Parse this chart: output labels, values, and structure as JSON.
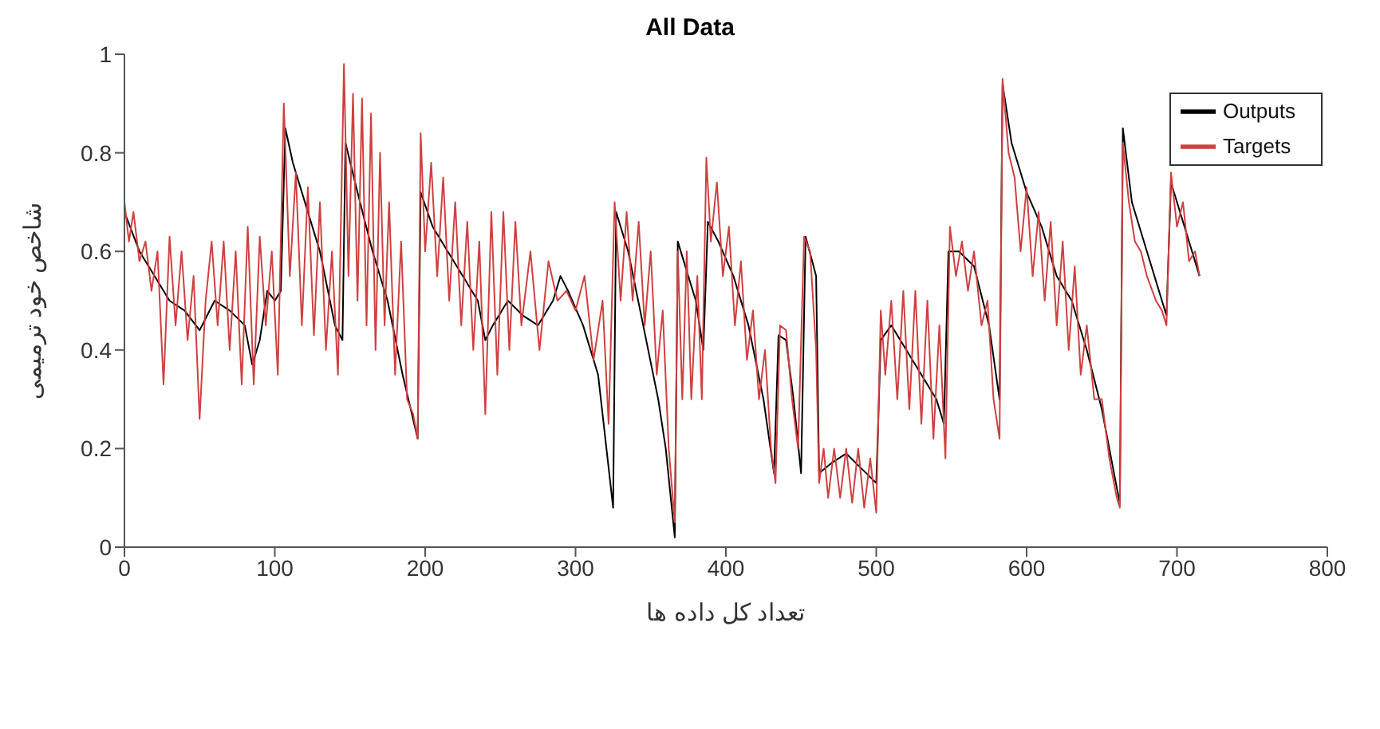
{
  "chart_data": {
    "type": "line",
    "title": "All Data",
    "xlabel": "تعداد کل داده ها",
    "ylabel": "شاخص خود ترمیمی",
    "xlim": [
      0,
      800
    ],
    "xticks": [
      0,
      100,
      200,
      300,
      400,
      500,
      600,
      700,
      800
    ],
    "ylim": [
      0,
      1
    ],
    "yticks": [
      0,
      0.2,
      0.4,
      0.6,
      0.8,
      1
    ],
    "grid": false,
    "legend": "top right",
    "marker": "none",
    "line_style": "solid",
    "series": [
      {
        "name": "Targets",
        "color": "#d04040",
        "x": [
          0,
          3,
          6,
          10,
          14,
          18,
          22,
          26,
          30,
          34,
          38,
          42,
          46,
          50,
          54,
          58,
          62,
          66,
          70,
          74,
          78,
          82,
          86,
          90,
          94,
          98,
          102,
          106,
          110,
          114,
          118,
          122,
          126,
          130,
          134,
          138,
          142,
          146,
          149,
          152,
          155,
          158,
          161,
          164,
          167,
          170,
          173,
          176,
          180,
          184,
          188,
          192,
          195,
          197,
          200,
          204,
          208,
          212,
          216,
          220,
          224,
          228,
          232,
          236,
          240,
          244,
          248,
          252,
          256,
          260,
          264,
          270,
          276,
          282,
          288,
          294,
          300,
          306,
          312,
          318,
          322,
          326,
          330,
          334,
          338,
          342,
          346,
          350,
          354,
          358,
          362,
          366,
          368,
          371,
          374,
          377,
          381,
          384,
          387,
          390,
          394,
          398,
          402,
          406,
          410,
          414,
          418,
          422,
          426,
          430,
          433,
          436,
          440,
          444,
          448,
          452,
          456,
          460,
          462,
          465,
          468,
          472,
          476,
          480,
          484,
          488,
          492,
          496,
          500,
          503,
          506,
          510,
          514,
          518,
          522,
          526,
          530,
          534,
          538,
          542,
          546,
          549,
          553,
          557,
          561,
          565,
          570,
          574,
          578,
          582,
          584,
          588,
          592,
          596,
          600,
          604,
          608,
          612,
          616,
          620,
          624,
          628,
          632,
          636,
          640,
          645,
          650,
          655,
          660,
          662,
          664,
          668,
          672,
          676,
          680,
          686,
          690,
          693,
          696,
          700,
          704,
          708,
          712,
          715
        ],
        "values": [
          0.7,
          0.62,
          0.68,
          0.58,
          0.62,
          0.52,
          0.6,
          0.33,
          0.63,
          0.45,
          0.6,
          0.42,
          0.55,
          0.26,
          0.5,
          0.62,
          0.45,
          0.62,
          0.4,
          0.6,
          0.33,
          0.65,
          0.33,
          0.63,
          0.45,
          0.6,
          0.35,
          0.9,
          0.55,
          0.76,
          0.45,
          0.73,
          0.43,
          0.7,
          0.4,
          0.6,
          0.35,
          0.98,
          0.55,
          0.92,
          0.5,
          0.91,
          0.45,
          0.88,
          0.4,
          0.8,
          0.45,
          0.7,
          0.35,
          0.62,
          0.3,
          0.27,
          0.22,
          0.84,
          0.6,
          0.78,
          0.55,
          0.75,
          0.5,
          0.7,
          0.45,
          0.66,
          0.4,
          0.62,
          0.27,
          0.68,
          0.35,
          0.68,
          0.4,
          0.66,
          0.45,
          0.6,
          0.4,
          0.58,
          0.5,
          0.52,
          0.48,
          0.55,
          0.38,
          0.5,
          0.25,
          0.7,
          0.5,
          0.68,
          0.5,
          0.66,
          0.45,
          0.6,
          0.35,
          0.48,
          0.2,
          0.05,
          0.6,
          0.3,
          0.6,
          0.3,
          0.55,
          0.3,
          0.79,
          0.62,
          0.74,
          0.55,
          0.65,
          0.45,
          0.58,
          0.38,
          0.48,
          0.3,
          0.4,
          0.2,
          0.13,
          0.45,
          0.44,
          0.3,
          0.2,
          0.63,
          0.6,
          0.4,
          0.13,
          0.2,
          0.1,
          0.2,
          0.1,
          0.2,
          0.09,
          0.2,
          0.08,
          0.18,
          0.07,
          0.48,
          0.35,
          0.5,
          0.3,
          0.52,
          0.28,
          0.52,
          0.25,
          0.5,
          0.22,
          0.45,
          0.18,
          0.65,
          0.55,
          0.62,
          0.52,
          0.6,
          0.45,
          0.5,
          0.3,
          0.22,
          0.95,
          0.8,
          0.75,
          0.6,
          0.73,
          0.55,
          0.68,
          0.5,
          0.66,
          0.45,
          0.62,
          0.4,
          0.57,
          0.35,
          0.45,
          0.3,
          0.3,
          0.18,
          0.1,
          0.08,
          0.82,
          0.7,
          0.62,
          0.6,
          0.55,
          0.5,
          0.48,
          0.45,
          0.76,
          0.65,
          0.7,
          0.58,
          0.6,
          0.55
        ]
      },
      {
        "name": "Outputs",
        "color": "#000000",
        "x": [
          0,
          10,
          20,
          30,
          40,
          50,
          55,
          60,
          70,
          80,
          85,
          90,
          95,
          100,
          104,
          107,
          112,
          120,
          130,
          140,
          145,
          147,
          155,
          165,
          175,
          185,
          195,
          197,
          205,
          215,
          225,
          235,
          240,
          245,
          255,
          265,
          275,
          285,
          290,
          295,
          305,
          315,
          325,
          327,
          335,
          345,
          355,
          360,
          366,
          368,
          375,
          380,
          385,
          388,
          395,
          405,
          415,
          425,
          432,
          435,
          440,
          445,
          450,
          453,
          460,
          462,
          470,
          480,
          490,
          500,
          503,
          510,
          520,
          530,
          540,
          545,
          548,
          555,
          565,
          575,
          582,
          584,
          590,
          600,
          610,
          620,
          630,
          640,
          650,
          660,
          662,
          664,
          670,
          680,
          690,
          693,
          696,
          705,
          715
        ],
        "values": [
          0.68,
          0.6,
          0.55,
          0.5,
          0.48,
          0.44,
          0.47,
          0.5,
          0.48,
          0.45,
          0.37,
          0.42,
          0.52,
          0.5,
          0.52,
          0.85,
          0.78,
          0.7,
          0.6,
          0.45,
          0.42,
          0.82,
          0.72,
          0.6,
          0.5,
          0.35,
          0.22,
          0.72,
          0.65,
          0.6,
          0.55,
          0.5,
          0.42,
          0.45,
          0.5,
          0.47,
          0.45,
          0.5,
          0.55,
          0.52,
          0.45,
          0.35,
          0.08,
          0.68,
          0.6,
          0.45,
          0.3,
          0.2,
          0.02,
          0.62,
          0.55,
          0.5,
          0.4,
          0.66,
          0.62,
          0.55,
          0.45,
          0.3,
          0.15,
          0.43,
          0.42,
          0.3,
          0.15,
          0.63,
          0.55,
          0.15,
          0.17,
          0.19,
          0.16,
          0.13,
          0.42,
          0.45,
          0.4,
          0.35,
          0.3,
          0.25,
          0.6,
          0.6,
          0.57,
          0.45,
          0.3,
          0.94,
          0.82,
          0.72,
          0.65,
          0.55,
          0.5,
          0.4,
          0.28,
          0.12,
          0.09,
          0.85,
          0.7,
          0.6,
          0.5,
          0.47,
          0.74,
          0.65,
          0.55
        ]
      }
    ]
  }
}
